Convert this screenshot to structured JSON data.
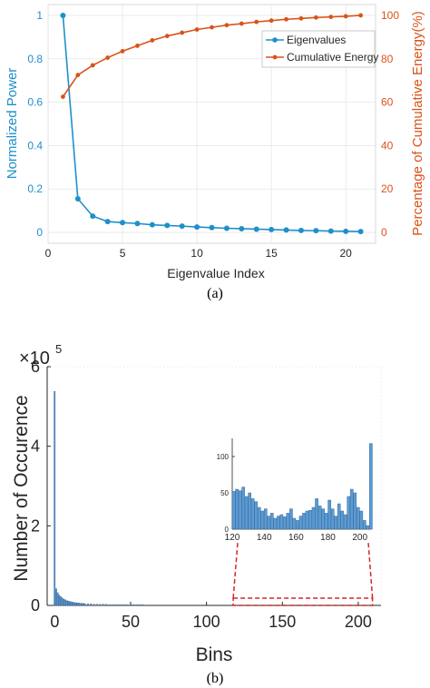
{
  "chart_data": [
    {
      "type": "line",
      "xlabel": "Eigenvalue Index",
      "ylabel": "Normalized Power",
      "y2label": "Percentage of Cumulative Energy(%)",
      "caption": "(a)",
      "x": [
        1,
        2,
        3,
        4,
        5,
        6,
        7,
        8,
        9,
        10,
        11,
        12,
        13,
        14,
        15,
        16,
        17,
        18,
        19,
        20,
        21
      ],
      "series": [
        {
          "name": "Eigenvalues",
          "axis": "left",
          "color": "#1f8fca",
          "values": [
            1.0,
            0.155,
            0.075,
            0.05,
            0.045,
            0.041,
            0.035,
            0.032,
            0.029,
            0.025,
            0.022,
            0.019,
            0.017,
            0.015,
            0.013,
            0.011,
            0.009,
            0.008,
            0.006,
            0.005,
            0.004
          ]
        },
        {
          "name": "Cumulative Energy",
          "axis": "right",
          "color": "#d95319",
          "values": [
            62.5,
            72.5,
            77,
            80.5,
            83.5,
            86,
            88.5,
            90.5,
            92,
            93.5,
            94.5,
            95.5,
            96.2,
            97,
            97.6,
            98.2,
            98.6,
            99,
            99.3,
            99.6,
            100
          ]
        }
      ],
      "xlim": [
        0,
        22
      ],
      "xticks": [
        0,
        5,
        10,
        15,
        20
      ],
      "ylim": [
        -0.05,
        1.05
      ],
      "yticks": [
        "0",
        "0.2",
        "0.4",
        "0.6",
        "0.8",
        "1"
      ],
      "y2lim": [
        -5,
        105
      ],
      "y2ticks": [
        "0",
        "20",
        "40",
        "60",
        "80",
        "100"
      ],
      "grid": true,
      "legend": "top-right"
    },
    {
      "type": "bar",
      "xlabel": "Bins",
      "ylabel": "Number of Occurence",
      "y_multiplier_base": "×10",
      "y_multiplier_exp": "5",
      "caption": "(b)",
      "xlim": [
        -5,
        215
      ],
      "xticks": [
        "0",
        "50",
        "100",
        "150",
        "200"
      ],
      "ylim": [
        0,
        6
      ],
      "yticks": [
        "0",
        "2",
        "4",
        "6"
      ],
      "color": "#5b9bd5",
      "bars": [
        {
          "x": 0,
          "y": 5.38
        },
        {
          "x": 1,
          "y": 0.42
        },
        {
          "x": 2,
          "y": 0.32
        },
        {
          "x": 3,
          "y": 0.26
        },
        {
          "x": 4,
          "y": 0.22
        },
        {
          "x": 5,
          "y": 0.19
        },
        {
          "x": 6,
          "y": 0.16
        },
        {
          "x": 7,
          "y": 0.14
        },
        {
          "x": 8,
          "y": 0.12
        },
        {
          "x": 9,
          "y": 0.11
        },
        {
          "x": 10,
          "y": 0.1
        },
        {
          "x": 11,
          "y": 0.09
        },
        {
          "x": 12,
          "y": 0.08
        },
        {
          "x": 13,
          "y": 0.07
        },
        {
          "x": 14,
          "y": 0.07
        },
        {
          "x": 15,
          "y": 0.06
        },
        {
          "x": 16,
          "y": 0.06
        },
        {
          "x": 17,
          "y": 0.05
        },
        {
          "x": 18,
          "y": 0.05
        },
        {
          "x": 19,
          "y": 0.05
        },
        {
          "x": 20,
          "y": 0.04
        },
        {
          "x": 22,
          "y": 0.04
        },
        {
          "x": 24,
          "y": 0.04
        },
        {
          "x": 26,
          "y": 0.03
        },
        {
          "x": 28,
          "y": 0.03
        },
        {
          "x": 30,
          "y": 0.03
        },
        {
          "x": 32,
          "y": 0.03
        },
        {
          "x": 34,
          "y": 0.03
        },
        {
          "x": 36,
          "y": 0.02
        },
        {
          "x": 38,
          "y": 0.02
        },
        {
          "x": 40,
          "y": 0.02
        },
        {
          "x": 42,
          "y": 0.02
        },
        {
          "x": 44,
          "y": 0.02
        },
        {
          "x": 46,
          "y": 0.02
        },
        {
          "x": 48,
          "y": 0.02
        },
        {
          "x": 50,
          "y": 0.02
        },
        {
          "x": 52,
          "y": 0.02
        },
        {
          "x": 54,
          "y": 0.02
        },
        {
          "x": 56,
          "y": 0.02
        },
        {
          "x": 58,
          "y": 0.02
        },
        {
          "x": 60,
          "y": 0.01
        }
      ],
      "inset": {
        "xlim": [
          120,
          207
        ],
        "xticks": [
          "120",
          "140",
          "160",
          "180",
          "200"
        ],
        "ylim": [
          0,
          125
        ],
        "yticks": [
          "0",
          "50",
          "100"
        ],
        "x": [
          120,
          122,
          124,
          126,
          128,
          130,
          132,
          134,
          136,
          138,
          140,
          142,
          144,
          146,
          148,
          150,
          152,
          154,
          156,
          158,
          160,
          162,
          164,
          166,
          168,
          170,
          172,
          174,
          176,
          178,
          180,
          182,
          184,
          186,
          188,
          190,
          192,
          194,
          196,
          198,
          200,
          202,
          204,
          206
        ],
        "values": [
          52,
          55,
          53,
          58,
          45,
          50,
          42,
          38,
          30,
          25,
          28,
          18,
          22,
          15,
          18,
          20,
          17,
          22,
          28,
          15,
          12,
          18,
          22,
          25,
          26,
          30,
          42,
          32,
          28,
          22,
          40,
          28,
          18,
          35,
          25,
          20,
          45,
          55,
          50,
          30,
          25,
          12,
          5,
          118
        ]
      },
      "zoom_range": [
        120,
        207
      ]
    }
  ]
}
